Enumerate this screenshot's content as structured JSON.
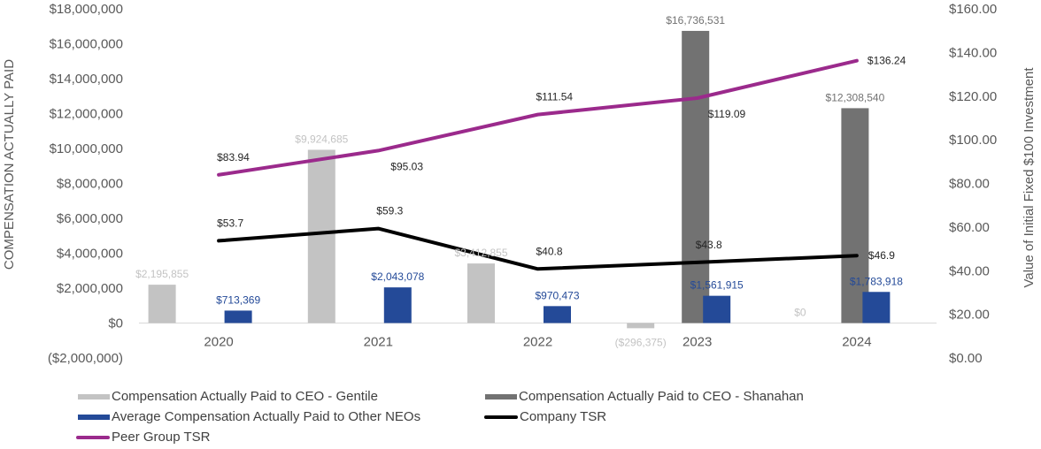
{
  "chart_data": {
    "type": "bar",
    "title": "",
    "categories": [
      "2020",
      "2021",
      "2022",
      "2023",
      "2024"
    ],
    "left_axis": {
      "label": "COMPENSATION  ACTUALLY  PAID",
      "range": [
        -2000000,
        18000000
      ],
      "ticks": [
        -2000000,
        0,
        2000000,
        4000000,
        6000000,
        8000000,
        10000000,
        12000000,
        14000000,
        16000000,
        18000000
      ],
      "tick_labels": [
        "($2,000,000)",
        "$0",
        "$2,000,000",
        "$4,000,000",
        "$6,000,000",
        "$8,000,000",
        "$10,000,000",
        "$12,000,000",
        "$14,000,000",
        "$16,000,000",
        "$18,000,000"
      ]
    },
    "right_axis": {
      "label": "Value of Initial Fixed  $100 Investment",
      "range": [
        0,
        160
      ],
      "ticks": [
        0,
        20,
        40,
        60,
        80,
        100,
        120,
        140,
        160
      ],
      "tick_labels": [
        "$0.00",
        "$20.00",
        "$40.00",
        "$60.00",
        "$80.00",
        "$100.00",
        "$120.00",
        "$140.00",
        "$160.00"
      ]
    },
    "grid": false,
    "legend_position": "bottom",
    "series": [
      {
        "name": "Compensation Actually Paid to CEO - Gentile",
        "kind": "bar",
        "axis": "left",
        "color": "#c3c3c3",
        "label_color": "#c3c3c3",
        "values": [
          2195855,
          9924685,
          3412855,
          -296375,
          0
        ],
        "labels": [
          "$2,195,855",
          "$9,924,685",
          "$3,412,855",
          "($296,375)",
          "$0"
        ]
      },
      {
        "name": "Compensation Actually Paid to CEO - Shanahan",
        "kind": "bar",
        "axis": "left",
        "color": "#727272",
        "label_color": "#727272",
        "values": [
          null,
          null,
          null,
          16736531,
          12308540
        ],
        "labels": [
          "",
          "",
          "",
          "$16,736,531",
          "$12,308,540"
        ]
      },
      {
        "name": "Average Compensation Actually Paid to Other NEOs",
        "kind": "bar",
        "axis": "left",
        "color": "#244a98",
        "label_color": "#244a98",
        "values": [
          713369,
          2043078,
          970473,
          1561915,
          1783918
        ],
        "labels": [
          "$713,369",
          "$2,043,078",
          "$970,473",
          "$1,561,915",
          "$1,783,918"
        ]
      },
      {
        "name": "Company TSR",
        "kind": "line",
        "axis": "right",
        "color": "#000000",
        "label_color": "#262626",
        "values": [
          53.7,
          59.3,
          40.8,
          43.8,
          46.9
        ],
        "labels": [
          "$53.7",
          "$59.3",
          "$40.8",
          "$43.8",
          "$46.9"
        ]
      },
      {
        "name": "Peer Group TSR",
        "kind": "line",
        "axis": "right",
        "color": "#9b2a8c",
        "label_color": "#262626",
        "values": [
          83.94,
          95.03,
          111.54,
          119.09,
          136.24
        ],
        "labels": [
          "$83.94",
          "$95.03",
          "$111.54",
          "$119.09",
          "$136.24"
        ]
      }
    ],
    "legend": [
      {
        "label": "Compensation Actually Paid to CEO - Gentile",
        "type": "bar",
        "color": "#c3c3c3"
      },
      {
        "label": "Compensation Actually Paid to CEO - Shanahan",
        "type": "bar",
        "color": "#727272"
      },
      {
        "label": "Average Compensation Actually Paid to Other NEOs",
        "type": "bar",
        "color": "#244a98"
      },
      {
        "label": "Company TSR",
        "type": "line",
        "color": "#000000"
      },
      {
        "label": "Peer Group TSR",
        "type": "line",
        "color": "#9b2a8c"
      }
    ]
  }
}
